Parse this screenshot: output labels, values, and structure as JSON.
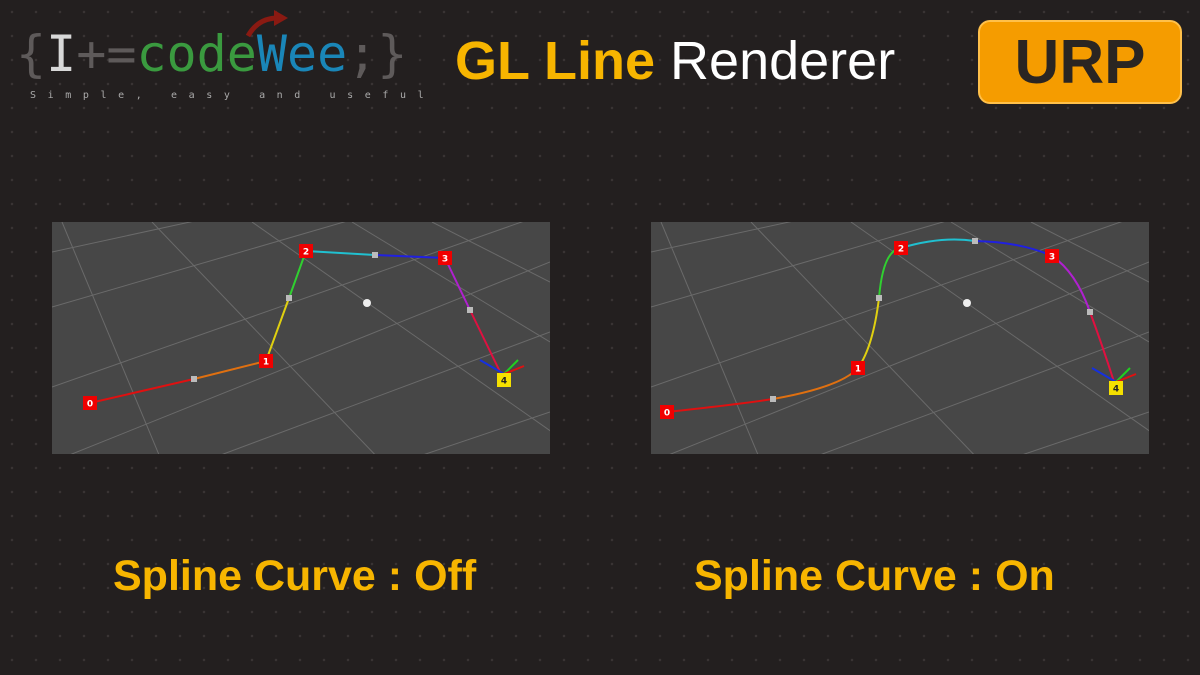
{
  "logo": {
    "brace_open": "{",
    "i": "I",
    "op": "+=",
    "code": "code",
    "wee": "Wee",
    "semi": ";",
    "brace_close": "}",
    "tagline": "Simple, easy and useful"
  },
  "title": {
    "highlight": "GL Line",
    "rest": "Renderer"
  },
  "badge": "URP",
  "panels": [
    {
      "caption": "Spline Curve : Off",
      "points": [
        "0",
        "1",
        "2",
        "3",
        "4"
      ]
    },
    {
      "caption": "Spline Curve : On",
      "points": [
        "0",
        "1",
        "2",
        "3",
        "4"
      ]
    }
  ],
  "colors": {
    "accent": "#f7b500",
    "badge": "#f59c00",
    "background": "#231f1f",
    "scene": "#474747"
  }
}
